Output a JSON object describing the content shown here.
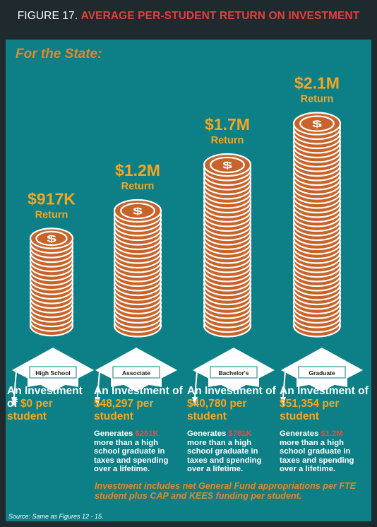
{
  "header": {
    "prefix": "FIGURE 17.",
    "title": "AVERAGE PER-STUDENT RETURN ON INVESTMENT"
  },
  "panel": {
    "heading": "For the State:",
    "footnote": "Investment includes net General Fund appropriations per FTE student plus CAP and KEES funding per student.",
    "source": "Source: Same as Figures 12 - 15."
  },
  "chart_data": {
    "type": "bar",
    "title": "AVERAGE PER-STUDENT RETURN ON INVESTMENT",
    "subtitle": "For the State:",
    "categories": [
      "High School",
      "Associate",
      "Bachelor's",
      "Graduate"
    ],
    "values": [
      917000,
      1200000,
      1700000,
      2100000
    ],
    "value_labels": [
      "$917K",
      "$1.2M",
      "$1.7M",
      "$2.1M"
    ],
    "value_suffix": "Return",
    "investment_labels": [
      "$0 per student",
      "$48,297 per student",
      "$40,780 per student",
      "$51,354 per student"
    ],
    "investment_values": [
      0,
      48297,
      40780,
      51354
    ],
    "generates_amounts": [
      null,
      "$281K",
      "$781K",
      "$1.2M"
    ],
    "generates_values": [
      null,
      281000,
      781000,
      1200000
    ],
    "colors": {
      "background": "#0d7f86",
      "coin_fill": "#c8642a",
      "coin_edge": "#ffffff",
      "value_text": "#f5a623",
      "heading": "#e8862a",
      "generates_highlight": "#ef4c3f"
    }
  },
  "columns": [
    {
      "cap_label": "High School",
      "value": "$917K",
      "return_label": "Return",
      "invest_prefix": "An Investment of ",
      "invest_amount": "$0 per student",
      "gen_prefix": "",
      "gen_amount": "",
      "gen_suffix": ""
    },
    {
      "cap_label": "Associate",
      "value": "$1.2M",
      "return_label": "Return",
      "invest_prefix": "An Investment of ",
      "invest_amount": "$48,297 per student",
      "gen_prefix": "Generates ",
      "gen_amount": "$281K",
      "gen_suffix": " more than a high school graduate in taxes and spending over a lifetime."
    },
    {
      "cap_label": "Bachelor's",
      "value": "$1.7M",
      "return_label": "Return",
      "invest_prefix": "An Investment of ",
      "invest_amount": "$40,780 per student",
      "gen_prefix": "Generates ",
      "gen_amount": "$781K",
      "gen_suffix": " more than a high school graduate in taxes and spending over a lifetime."
    },
    {
      "cap_label": "Graduate",
      "value": "$2.1M",
      "return_label": "Return",
      "invest_prefix": "An Investment of ",
      "invest_amount": "$51,354 per student",
      "gen_prefix": "Generates ",
      "gen_amount": "$1.2M",
      "gen_suffix": " more than a high school graduate in taxes and spending over a lifetime."
    }
  ],
  "icons": {
    "coin": "dollar-coin-icon",
    "cap": "graduation-cap-icon"
  }
}
